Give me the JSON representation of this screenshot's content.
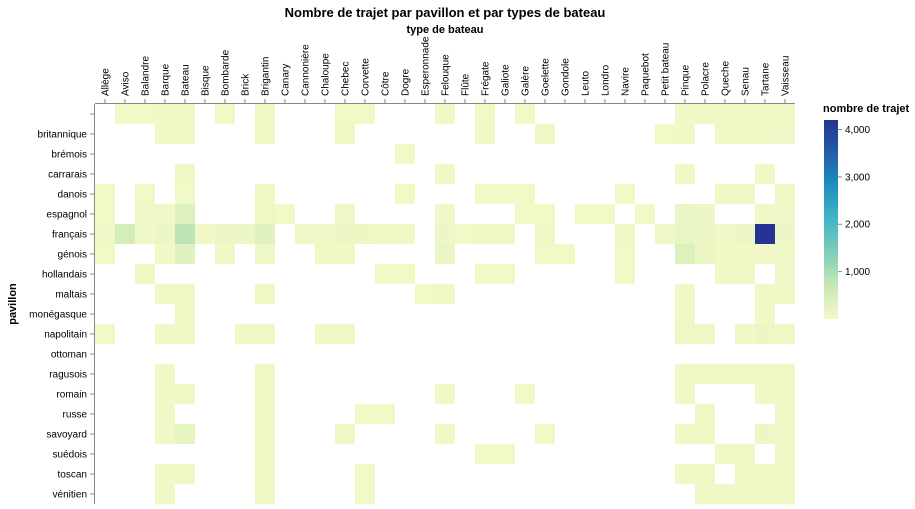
{
  "chart_data": {
    "type": "heatmap",
    "title": "Nombre de trajet par pavillon et par types de bateau",
    "xlabel": "type de bateau",
    "ylabel": "pavillon",
    "legend_title": "nombre de trajet",
    "legend_ticks": [
      "1,000",
      "2,000",
      "3,000",
      "4,000"
    ],
    "legend_tick_values": [
      1000,
      2000,
      3000,
      4000
    ],
    "color_domain": [
      0,
      4200
    ],
    "color_range": [
      "#f2f9c7",
      "#c7e9b4",
      "#7fcdbb",
      "#41b6c4",
      "#1d91c0",
      "#225ea8",
      "#253494"
    ],
    "legend_position": "right",
    "grid": false,
    "x_categories": [
      "Allège",
      "Aviso",
      "Balandre",
      "Barque",
      "Bateau",
      "Bisque",
      "Bombarde",
      "Brick",
      "Brigantin",
      "Canary",
      "Cannonière",
      "Chaloupe",
      "Chebec",
      "Corvette",
      "Côtre",
      "Dogre",
      "Esperonnade",
      "Felouque",
      "Flûte",
      "Frégate",
      "Galiote",
      "Galère",
      "Goelette",
      "Gondole",
      "Leuto",
      "Londro",
      "Navire",
      "Paquebot",
      "Petit bateau",
      "Pinque",
      "Polacre",
      "Queche",
      "Senau",
      "Tartane",
      "Vaisseau"
    ],
    "y_categories": [
      "",
      "britannique",
      "brémois",
      "carrarais",
      "danois",
      "espagnol",
      "français",
      "génois",
      "hollandais",
      "maltais",
      "monégasque",
      "napolitain",
      "ottoman",
      "ragusois",
      "romain",
      "russe",
      "savoyard",
      "suédois",
      "toscan",
      "vénitien"
    ],
    "cells": [
      [
        "",
        "Aviso",
        20
      ],
      [
        "",
        "Balandre",
        20
      ],
      [
        "",
        "Barque",
        40
      ],
      [
        "",
        "Bateau",
        40
      ],
      [
        "",
        "Bombarde",
        20
      ],
      [
        "",
        "Brigantin",
        40
      ],
      [
        "",
        "Chebec",
        20
      ],
      [
        "",
        "Corvette",
        20
      ],
      [
        "",
        "Felouque",
        30
      ],
      [
        "",
        "Frégate",
        20
      ],
      [
        "",
        "Galère",
        20
      ],
      [
        "",
        "Pinque",
        40
      ],
      [
        "",
        "Polacre",
        30
      ],
      [
        "",
        "Queche",
        30
      ],
      [
        "",
        "Senau",
        30
      ],
      [
        "",
        "Tartane",
        40
      ],
      [
        "",
        "Vaisseau",
        30
      ],
      [
        "britannique",
        "Barque",
        40
      ],
      [
        "britannique",
        "Bateau",
        40
      ],
      [
        "britannique",
        "Brigantin",
        40
      ],
      [
        "britannique",
        "Chebec",
        30
      ],
      [
        "britannique",
        "Frégate",
        30
      ],
      [
        "britannique",
        "Goelette",
        30
      ],
      [
        "britannique",
        "Petit bateau",
        20
      ],
      [
        "britannique",
        "Pinque",
        40
      ],
      [
        "britannique",
        "Queche",
        40
      ],
      [
        "britannique",
        "Senau",
        40
      ],
      [
        "britannique",
        "Tartane",
        40
      ],
      [
        "britannique",
        "Vaisseau",
        50
      ],
      [
        "brémois",
        "Dogre",
        20
      ],
      [
        "carrarais",
        "Bateau",
        30
      ],
      [
        "carrarais",
        "Felouque",
        30
      ],
      [
        "carrarais",
        "Pinque",
        30
      ],
      [
        "carrarais",
        "Tartane",
        30
      ],
      [
        "danois",
        "Allège",
        20
      ],
      [
        "danois",
        "Balandre",
        20
      ],
      [
        "danois",
        "Bateau",
        20
      ],
      [
        "danois",
        "Brigantin",
        30
      ],
      [
        "danois",
        "Dogre",
        20
      ],
      [
        "danois",
        "Frégate",
        20
      ],
      [
        "danois",
        "Galiote",
        20
      ],
      [
        "danois",
        "Galère",
        20
      ],
      [
        "danois",
        "Navire",
        20
      ],
      [
        "danois",
        "Queche",
        30
      ],
      [
        "danois",
        "Senau",
        30
      ],
      [
        "danois",
        "Vaisseau",
        30
      ],
      [
        "espagnol",
        "Allège",
        20
      ],
      [
        "espagnol",
        "Balandre",
        30
      ],
      [
        "espagnol",
        "Barque",
        50
      ],
      [
        "espagnol",
        "Bateau",
        350
      ],
      [
        "espagnol",
        "Brigantin",
        60
      ],
      [
        "espagnol",
        "Canary",
        20
      ],
      [
        "espagnol",
        "Chebec",
        50
      ],
      [
        "espagnol",
        "Felouque",
        50
      ],
      [
        "espagnol",
        "Goelette",
        20
      ],
      [
        "espagnol",
        "Galère",
        20
      ],
      [
        "espagnol",
        "Leuto",
        20
      ],
      [
        "espagnol",
        "Londro",
        20
      ],
      [
        "espagnol",
        "Paquebot",
        20
      ],
      [
        "espagnol",
        "Pinque",
        150
      ],
      [
        "espagnol",
        "Polacre",
        80
      ],
      [
        "espagnol",
        "Tartane",
        40
      ],
      [
        "espagnol",
        "Vaisseau",
        50
      ],
      [
        "français",
        "Allège",
        50
      ],
      [
        "français",
        "Aviso",
        500
      ],
      [
        "français",
        "Balandre",
        40
      ],
      [
        "français",
        "Barque",
        80
      ],
      [
        "français",
        "Bateau",
        800
      ],
      [
        "français",
        "Bisque",
        40
      ],
      [
        "français",
        "Bombarde",
        80
      ],
      [
        "français",
        "Brick",
        80
      ],
      [
        "français",
        "Brigantin",
        300
      ],
      [
        "français",
        "Cannonière",
        30
      ],
      [
        "français",
        "Chaloupe",
        50
      ],
      [
        "français",
        "Chebec",
        80
      ],
      [
        "français",
        "Corvette",
        100
      ],
      [
        "français",
        "Côtre",
        40
      ],
      [
        "français",
        "Dogre",
        30
      ],
      [
        "français",
        "Felouque",
        80
      ],
      [
        "français",
        "Flûte",
        20
      ],
      [
        "français",
        "Frégate",
        40
      ],
      [
        "français",
        "Galiote",
        30
      ],
      [
        "français",
        "Goelette",
        30
      ],
      [
        "français",
        "Navire",
        30
      ],
      [
        "français",
        "Petit bateau",
        50
      ],
      [
        "français",
        "Pinque",
        150
      ],
      [
        "français",
        "Polacre",
        100
      ],
      [
        "français",
        "Queche",
        50
      ],
      [
        "français",
        "Senau",
        80
      ],
      [
        "français",
        "Tartane",
        4200
      ],
      [
        "français",
        "Vaisseau",
        80
      ],
      [
        "génois",
        "Allège",
        20
      ],
      [
        "génois",
        "Barque",
        40
      ],
      [
        "génois",
        "Bateau",
        300
      ],
      [
        "génois",
        "Bombarde",
        40
      ],
      [
        "génois",
        "Brigantin",
        60
      ],
      [
        "génois",
        "Chaloupe",
        40
      ],
      [
        "génois",
        "Chebec",
        40
      ],
      [
        "génois",
        "Felouque",
        150
      ],
      [
        "génois",
        "Goelette",
        20
      ],
      [
        "génois",
        "Gondole",
        20
      ],
      [
        "génois",
        "Navire",
        20
      ],
      [
        "génois",
        "Pinque",
        350
      ],
      [
        "génois",
        "Polacre",
        100
      ],
      [
        "génois",
        "Queche",
        40
      ],
      [
        "génois",
        "Senau",
        40
      ],
      [
        "génois",
        "Tartane",
        40
      ],
      [
        "génois",
        "Vaisseau",
        60
      ],
      [
        "hollandais",
        "Balandre",
        30
      ],
      [
        "hollandais",
        "Côtre",
        20
      ],
      [
        "hollandais",
        "Dogre",
        20
      ],
      [
        "hollandais",
        "Frégate",
        20
      ],
      [
        "hollandais",
        "Galiote",
        20
      ],
      [
        "hollandais",
        "Navire",
        20
      ],
      [
        "hollandais",
        "Queche",
        30
      ],
      [
        "hollandais",
        "Senau",
        30
      ],
      [
        "hollandais",
        "Vaisseau",
        50
      ],
      [
        "maltais",
        "Barque",
        40
      ],
      [
        "maltais",
        "Bateau",
        40
      ],
      [
        "maltais",
        "Brigantin",
        40
      ],
      [
        "maltais",
        "Esperonnade",
        20
      ],
      [
        "maltais",
        "Felouque",
        30
      ],
      [
        "maltais",
        "Pinque",
        30
      ],
      [
        "maltais",
        "Tartane",
        40
      ],
      [
        "maltais",
        "Vaisseau",
        40
      ],
      [
        "monégasque",
        "Bateau",
        40
      ],
      [
        "monégasque",
        "Pinque",
        30
      ],
      [
        "monégasque",
        "Tartane",
        30
      ],
      [
        "napolitain",
        "Allège",
        20
      ],
      [
        "napolitain",
        "Barque",
        40
      ],
      [
        "napolitain",
        "Bateau",
        40
      ],
      [
        "napolitain",
        "Brick",
        30
      ],
      [
        "napolitain",
        "Brigantin",
        40
      ],
      [
        "napolitain",
        "Chaloupe",
        30
      ],
      [
        "napolitain",
        "Chebec",
        30
      ],
      [
        "napolitain",
        "Pinque",
        60
      ],
      [
        "napolitain",
        "Polacre",
        50
      ],
      [
        "napolitain",
        "Senau",
        30
      ],
      [
        "napolitain",
        "Tartane",
        80
      ],
      [
        "napolitain",
        "Vaisseau",
        40
      ],
      [
        "ragusois",
        "Barque",
        30
      ],
      [
        "ragusois",
        "Brigantin",
        40
      ],
      [
        "ragusois",
        "Pinque",
        40
      ],
      [
        "ragusois",
        "Polacre",
        40
      ],
      [
        "ragusois",
        "Queche",
        30
      ],
      [
        "ragusois",
        "Senau",
        30
      ],
      [
        "ragusois",
        "Tartane",
        40
      ],
      [
        "ragusois",
        "Vaisseau",
        40
      ],
      [
        "romain",
        "Barque",
        30
      ],
      [
        "romain",
        "Bateau",
        30
      ],
      [
        "romain",
        "Brigantin",
        40
      ],
      [
        "romain",
        "Felouque",
        30
      ],
      [
        "romain",
        "Galère",
        20
      ],
      [
        "romain",
        "Pinque",
        30
      ],
      [
        "romain",
        "Tartane",
        40
      ],
      [
        "romain",
        "Vaisseau",
        40
      ],
      [
        "russe",
        "Barque",
        30
      ],
      [
        "russe",
        "Brigantin",
        30
      ],
      [
        "russe",
        "Corvette",
        20
      ],
      [
        "russe",
        "Côtre",
        20
      ],
      [
        "russe",
        "Polacre",
        30
      ],
      [
        "russe",
        "Vaisseau",
        30
      ],
      [
        "savoyard",
        "Barque",
        30
      ],
      [
        "savoyard",
        "Bateau",
        200
      ],
      [
        "savoyard",
        "Brigantin",
        40
      ],
      [
        "savoyard",
        "Chebec",
        30
      ],
      [
        "savoyard",
        "Felouque",
        30
      ],
      [
        "savoyard",
        "Goelette",
        20
      ],
      [
        "savoyard",
        "Pinque",
        40
      ],
      [
        "savoyard",
        "Polacre",
        40
      ],
      [
        "savoyard",
        "Tartane",
        80
      ],
      [
        "savoyard",
        "Vaisseau",
        40
      ],
      [
        "suédois",
        "Brigantin",
        30
      ],
      [
        "suédois",
        "Frégate",
        20
      ],
      [
        "suédois",
        "Galiote",
        20
      ],
      [
        "suédois",
        "Queche",
        30
      ],
      [
        "suédois",
        "Senau",
        30
      ],
      [
        "suédois",
        "Vaisseau",
        30
      ],
      [
        "toscan",
        "Barque",
        30
      ],
      [
        "toscan",
        "Bateau",
        30
      ],
      [
        "toscan",
        "Brigantin",
        40
      ],
      [
        "toscan",
        "Corvette",
        20
      ],
      [
        "toscan",
        "Pinque",
        40
      ],
      [
        "toscan",
        "Polacre",
        30
      ],
      [
        "toscan",
        "Senau",
        30
      ],
      [
        "toscan",
        "Tartane",
        40
      ],
      [
        "toscan",
        "Vaisseau",
        40
      ],
      [
        "vénitien",
        "Barque",
        30
      ],
      [
        "vénitien",
        "Brigantin",
        40
      ],
      [
        "vénitien",
        "Corvette",
        20
      ],
      [
        "vénitien",
        "Polacre",
        40
      ],
      [
        "vénitien",
        "Queche",
        40
      ],
      [
        "vénitien",
        "Senau",
        30
      ],
      [
        "vénitien",
        "Tartane",
        40
      ],
      [
        "vénitien",
        "Vaisseau",
        40
      ]
    ]
  }
}
